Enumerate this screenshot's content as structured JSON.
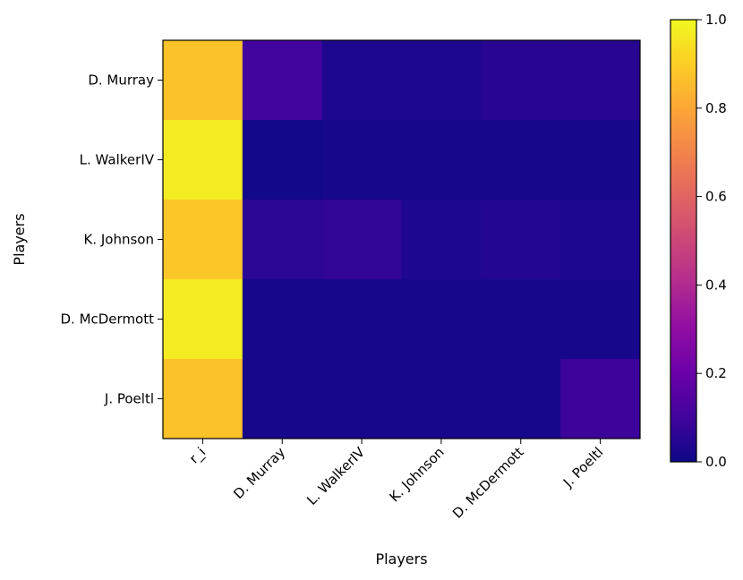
{
  "chart_data": {
    "type": "heatmap",
    "title": "",
    "xlabel": "Players",
    "ylabel": "Players",
    "x_categories": [
      "r_i",
      "D. Murray",
      "L. WalkerIV",
      "K. Johnson",
      "D. McDermott",
      "J. Poeltl"
    ],
    "y_categories": [
      "D. Murray",
      "L. WalkerIV",
      "K. Johnson",
      "D. McDermott",
      "J. Poeltl"
    ],
    "values": [
      [
        0.87,
        0.1,
        0.03,
        0.03,
        0.05,
        0.05
      ],
      [
        0.97,
        0.01,
        0.02,
        0.02,
        0.02,
        0.02
      ],
      [
        0.88,
        0.06,
        0.07,
        0.03,
        0.04,
        0.03
      ],
      [
        0.97,
        0.02,
        0.02,
        0.02,
        0.02,
        0.02
      ],
      [
        0.87,
        0.02,
        0.02,
        0.02,
        0.02,
        0.09
      ]
    ],
    "colormap": "plasma",
    "colorbar": {
      "min": 0.0,
      "max": 1.0,
      "ticks": [
        "0.0",
        "0.2",
        "0.4",
        "0.6",
        "0.8",
        "1.0"
      ]
    },
    "grid": false
  }
}
